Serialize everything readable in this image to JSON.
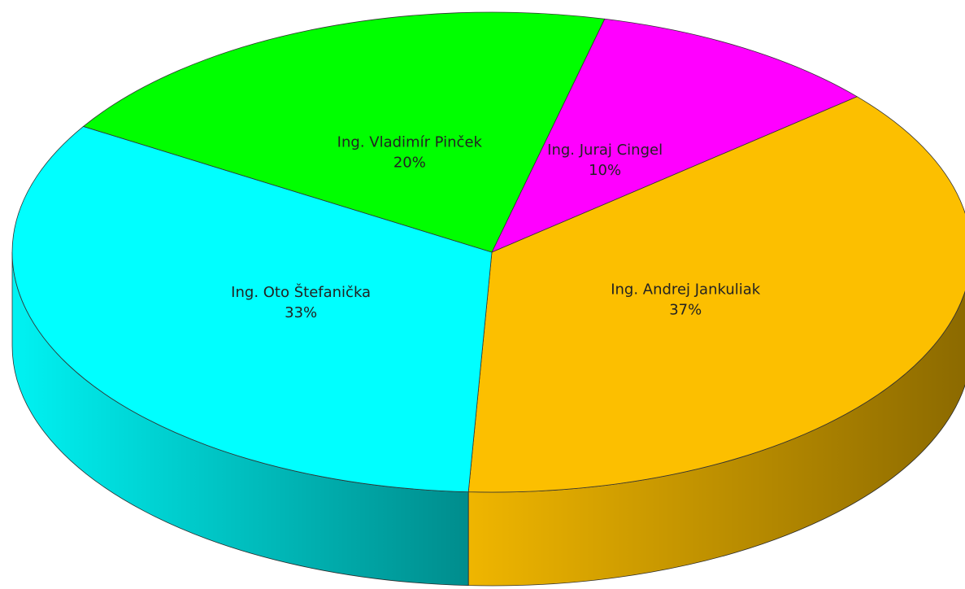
{
  "chart_data": {
    "type": "pie",
    "three_d": true,
    "categories": [
      "Ing. Juraj Cingel",
      "Ing. Andrej Jankuliak",
      "Ing. Oto Štefanička",
      "Ing. Vladimír Pinček"
    ],
    "values": [
      10,
      37,
      33,
      20
    ],
    "value_labels": [
      "10%",
      "37%",
      "33%",
      "20%"
    ],
    "colors": [
      "#ff00ff",
      "#fcbf00",
      "#00ffff",
      "#00ff00"
    ]
  }
}
